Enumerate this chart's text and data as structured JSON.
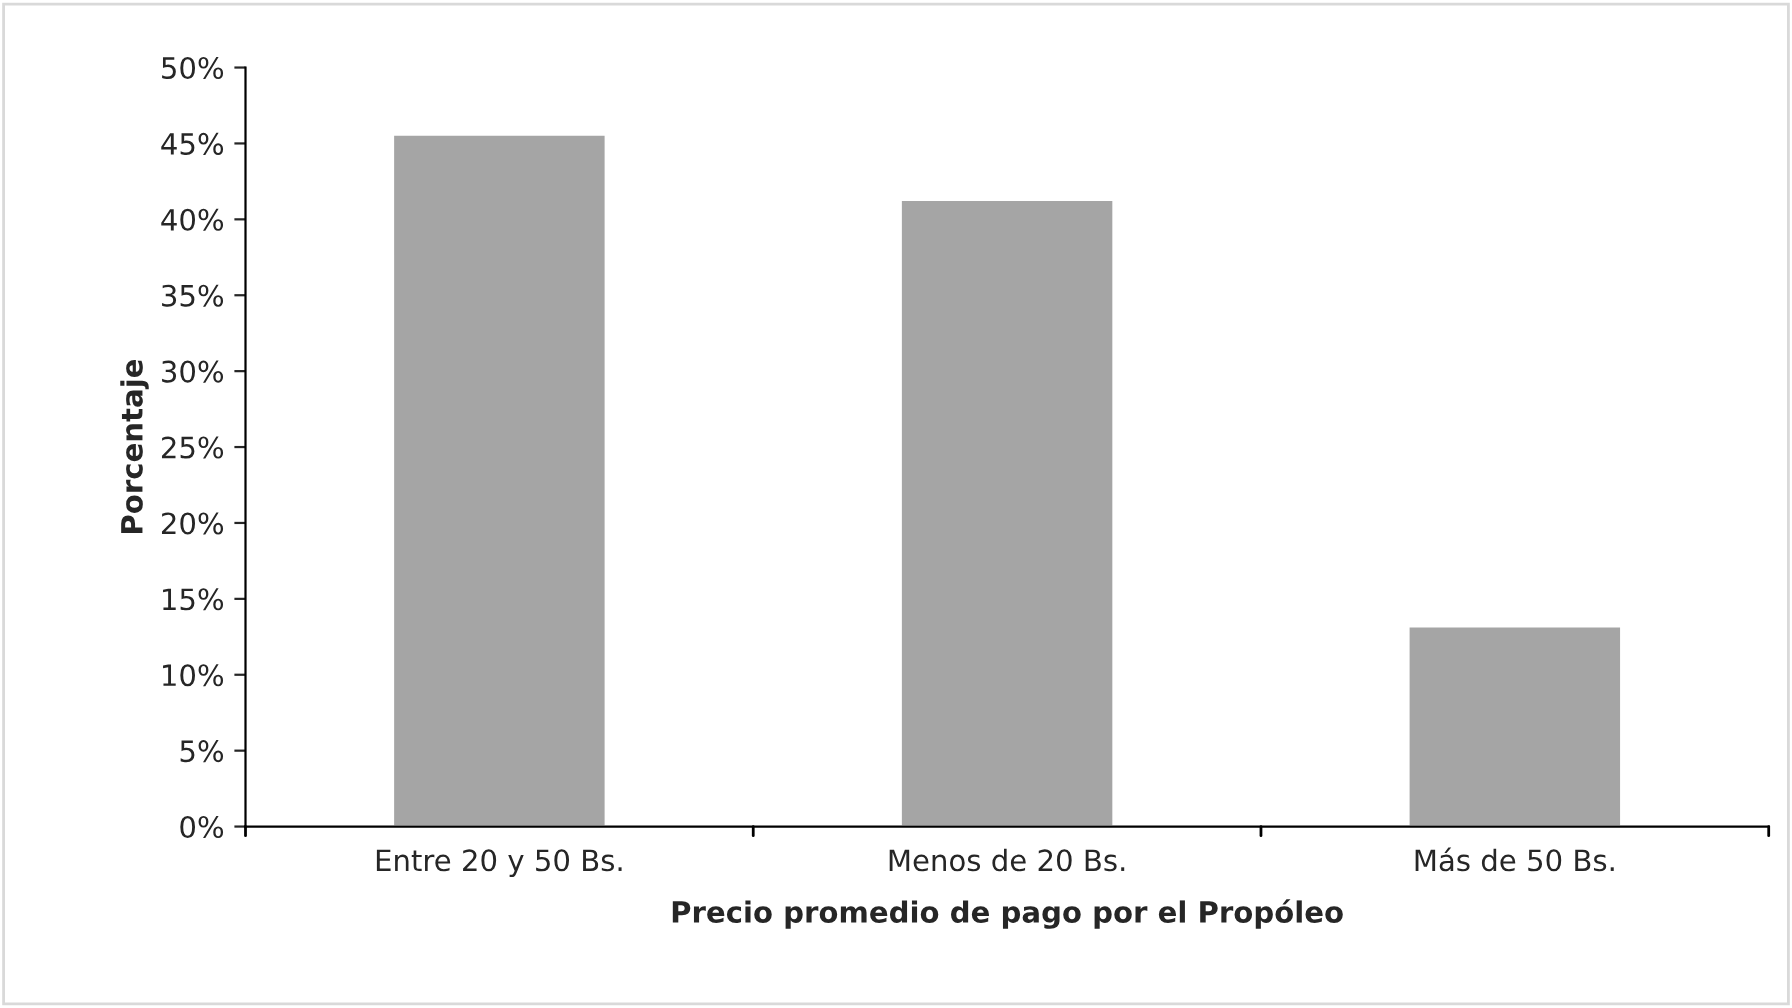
{
  "chart_data": {
    "type": "bar",
    "xlabel": "Precio promedio de pago por el Propóleo",
    "ylabel": "Porcentaje",
    "categories": [
      "Entre 20 y 50 Bs.",
      "Menos de 20 Bs.",
      "Más de 50 Bs."
    ],
    "values": [
      45.6,
      41.3,
      13.2
    ],
    "color": "#a5a5a5",
    "ylim": [
      0,
      50
    ],
    "yticks": [
      {
        "value": 0,
        "label": "0%"
      },
      {
        "value": 5,
        "label": "5%"
      },
      {
        "value": 10,
        "label": "10%"
      },
      {
        "value": 15,
        "label": "15%"
      },
      {
        "value": 20,
        "label": "20%"
      },
      {
        "value": 25,
        "label": "25%"
      },
      {
        "value": 30,
        "label": "30%"
      },
      {
        "value": 35,
        "label": "35%"
      },
      {
        "value": 40,
        "label": "40%"
      },
      {
        "value": 45,
        "label": "45%"
      },
      {
        "value": 50,
        "label": "50%"
      }
    ],
    "grid": false,
    "legend": false
  }
}
